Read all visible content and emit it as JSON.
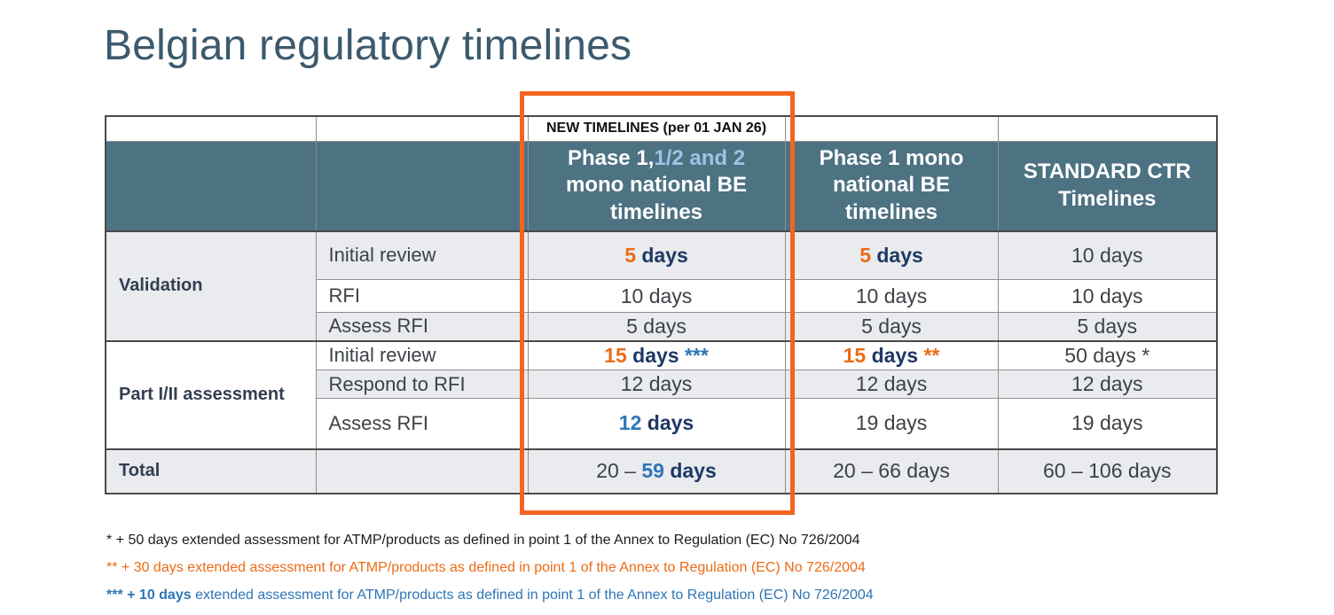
{
  "slide": {
    "title": "Belgian regulatory timelines"
  },
  "callout_label": "NEW TIMELINES (per 01 JAN 26)",
  "table": {
    "header": {
      "col3_part1": "Phase 1,",
      "col3_part2": "1/2 and 2",
      "col3_part3": " mono national BE timelines",
      "col4": "Phase 1 mono national BE timelines",
      "col5": "STANDARD CTR Timelines"
    },
    "groups": {
      "validation": "Validation",
      "part_assessment": "Part I/II assessment",
      "total": "Total"
    },
    "rows": {
      "v_initial": {
        "label": "Initial review",
        "new": {
          "num": "5",
          "unit": " days"
        },
        "phase1": {
          "num": "5",
          "unit": " days"
        },
        "standard": "10 days"
      },
      "v_rfi": {
        "label": "RFI",
        "new": "10 days",
        "phase1": "10 days",
        "standard": "10 days"
      },
      "v_assess": {
        "label": "Assess RFI",
        "new": "5 days",
        "phase1": "5 days",
        "standard": "5 days"
      },
      "p_initial": {
        "label": "Initial review",
        "new": {
          "num": "15",
          "unit": " days",
          "note": " ***"
        },
        "phase1": {
          "num": "15",
          "unit": " days",
          "note": " **"
        },
        "standard": "50 days *"
      },
      "p_respond": {
        "label": "Respond to RFI",
        "new": "12 days",
        "phase1": "12 days",
        "standard": "12 days"
      },
      "p_assess": {
        "label": "Assess RFI",
        "new": {
          "num": "12",
          "unit": " days"
        },
        "phase1": "19 days",
        "standard": "19 days"
      },
      "total": {
        "new": {
          "prefix": "20 – ",
          "num": "59",
          "unit": " days"
        },
        "phase1": "20 – 66 days",
        "standard": "60 – 106 days"
      }
    }
  },
  "footnotes": [
    {
      "lead": "* + 50 days",
      "rest": " extended assessment for ATMP/products as defined in point 1 of the Annex to Regulation (EC) No 726/2004"
    },
    {
      "lead": "** + 30 days",
      "rest": " extended assessment for ATMP/products as defined in point 1 of the Annex to Regulation (EC) No 726/2004"
    },
    {
      "lead": "*** + 10 days",
      "rest": " extended assessment for ATMP/products as defined in point 1 of the Annex to Regulation (EC) No 726/2004"
    }
  ],
  "colors": {
    "header_bg": "#4D7282",
    "header_light_blue": "#9DC3E6",
    "accent_orange": "#ED6B15",
    "accent_blue": "#2E75B6",
    "navy_bold": "#1F3864",
    "highlight_box": "#F4641E",
    "row_stripe": "#E9EBEE",
    "title_color": "#3C5A6D"
  }
}
